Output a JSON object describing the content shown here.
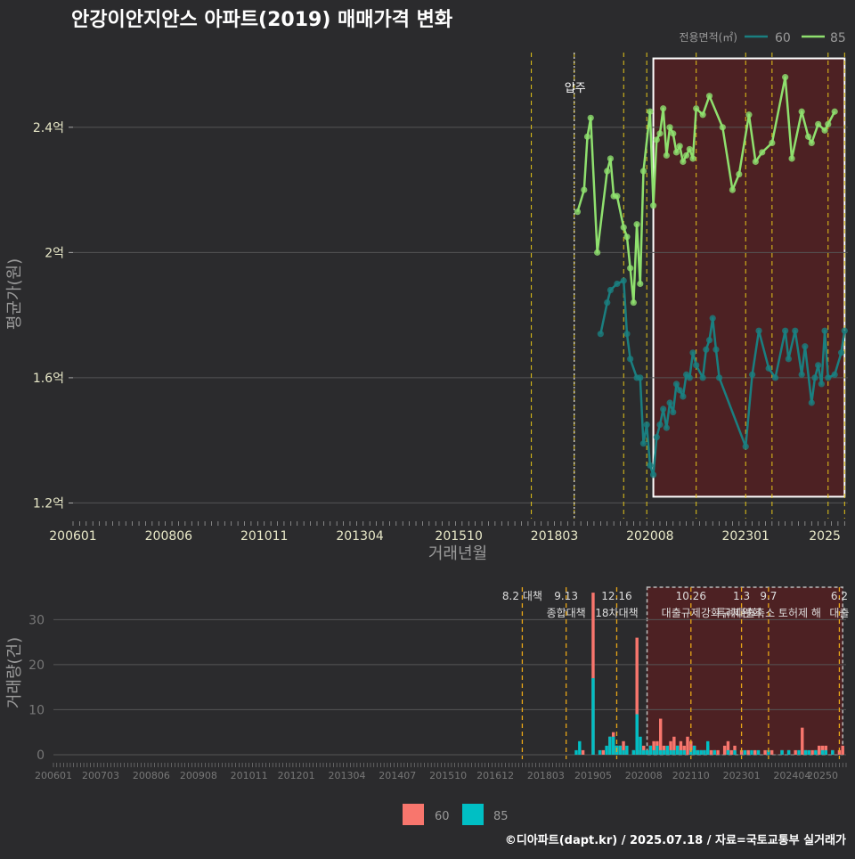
{
  "title": "안강이안지안스 아파트(2019) 매매가격 변화",
  "footer": "©디아파트(dapt.kr) / 2025.07.18 / 자료=국토교통부 실거래가",
  "colors": {
    "background": "#2b2b2d",
    "series_60": "#1a7f80",
    "series_85": "#8fe06e",
    "bar_60": "#f8766d",
    "bar_85": "#00bfc4",
    "policy_line": "#e6c619",
    "highlight_fill": "#5a1f20"
  },
  "chart_data": [
    {
      "type": "line",
      "title": "안강이안지안스 아파트(2019) 매매가격 변화",
      "xlabel": "거래년월",
      "ylabel": "평균가(원)",
      "legend_title": "전용면적(㎡)",
      "legend_placement": "top-right",
      "x_ticks": [
        "200601",
        "200806",
        "201011",
        "201304",
        "201510",
        "201803",
        "202008",
        "202301",
        "2025"
      ],
      "y_ticks": [
        "1.2억",
        "1.6억",
        "2억",
        "2.4억"
      ],
      "y_tick_values": [
        1.2,
        1.6,
        2.0,
        2.4
      ],
      "ylim": [
        1.15,
        2.65
      ],
      "xlim": [
        "2006-01",
        "2025-08"
      ],
      "annotation": "입주",
      "annotation_date": "2018-09",
      "policy_dates": [
        "2017-08",
        "2018-09",
        "2019-12",
        "2020-07",
        "2021-10",
        "2023-01",
        "2023-09",
        "2025-02",
        "2025-07"
      ],
      "highlight_range": [
        "2020-09",
        "2025-07"
      ],
      "highlight_y": [
        1.22,
        2.62
      ],
      "series": [
        {
          "name": "60",
          "points": [
            [
              "2019-05",
              1.74
            ],
            [
              "2019-07",
              1.84
            ],
            [
              "2019-08",
              1.88
            ],
            [
              "2019-10",
              1.9
            ],
            [
              "2019-12",
              1.91
            ],
            [
              "2020-01",
              1.74
            ],
            [
              "2020-02",
              1.66
            ],
            [
              "2020-04",
              1.6
            ],
            [
              "2020-05",
              1.6
            ],
            [
              "2020-06",
              1.39
            ],
            [
              "2020-07",
              1.45
            ],
            [
              "2020-08",
              1.32
            ],
            [
              "2020-09",
              1.29
            ],
            [
              "2020-10",
              1.41
            ],
            [
              "2020-11",
              1.45
            ],
            [
              "2020-12",
              1.5
            ],
            [
              "2021-01",
              1.44
            ],
            [
              "2021-02",
              1.52
            ],
            [
              "2021-03",
              1.49
            ],
            [
              "2021-04",
              1.58
            ],
            [
              "2021-05",
              1.56
            ],
            [
              "2021-06",
              1.54
            ],
            [
              "2021-07",
              1.61
            ],
            [
              "2021-08",
              1.6
            ],
            [
              "2021-09",
              1.68
            ],
            [
              "2021-10",
              1.64
            ],
            [
              "2021-12",
              1.6
            ],
            [
              "2022-01",
              1.69
            ],
            [
              "2022-02",
              1.72
            ],
            [
              "2022-03",
              1.79
            ],
            [
              "2022-04",
              1.69
            ],
            [
              "2022-05",
              1.6
            ],
            [
              "2023-01",
              1.38
            ],
            [
              "2023-03",
              1.61
            ],
            [
              "2023-05",
              1.75
            ],
            [
              "2023-08",
              1.63
            ],
            [
              "2023-10",
              1.6
            ],
            [
              "2024-01",
              1.75
            ],
            [
              "2024-02",
              1.66
            ],
            [
              "2024-04",
              1.75
            ],
            [
              "2024-06",
              1.61
            ],
            [
              "2024-07",
              1.7
            ],
            [
              "2024-09",
              1.52
            ],
            [
              "2024-10",
              1.6
            ],
            [
              "2024-11",
              1.64
            ],
            [
              "2024-12",
              1.58
            ],
            [
              "2025-01",
              1.75
            ],
            [
              "2025-02",
              1.6
            ],
            [
              "2025-04",
              1.61
            ],
            [
              "2025-06",
              1.68
            ],
            [
              "2025-07",
              1.75
            ]
          ]
        },
        {
          "name": "85",
          "points": [
            [
              "2018-10",
              2.13
            ],
            [
              "2018-12",
              2.2
            ],
            [
              "2019-01",
              2.37
            ],
            [
              "2019-02",
              2.43
            ],
            [
              "2019-04",
              2.0
            ],
            [
              "2019-07",
              2.26
            ],
            [
              "2019-08",
              2.3
            ],
            [
              "2019-09",
              2.18
            ],
            [
              "2019-10",
              2.18
            ],
            [
              "2019-12",
              2.08
            ],
            [
              "2020-01",
              2.05
            ],
            [
              "2020-02",
              1.95
            ],
            [
              "2020-03",
              1.84
            ],
            [
              "2020-04",
              2.09
            ],
            [
              "2020-05",
              1.9
            ],
            [
              "2020-06",
              2.26
            ],
            [
              "2020-08",
              2.45
            ],
            [
              "2020-09",
              2.15
            ],
            [
              "2020-10",
              2.36
            ],
            [
              "2020-11",
              2.38
            ],
            [
              "2020-12",
              2.46
            ],
            [
              "2021-01",
              2.31
            ],
            [
              "2021-02",
              2.4
            ],
            [
              "2021-03",
              2.38
            ],
            [
              "2021-04",
              2.32
            ],
            [
              "2021-05",
              2.34
            ],
            [
              "2021-06",
              2.29
            ],
            [
              "2021-07",
              2.31
            ],
            [
              "2021-08",
              2.33
            ],
            [
              "2021-09",
              2.3
            ],
            [
              "2021-10",
              2.46
            ],
            [
              "2021-12",
              2.44
            ],
            [
              "2022-02",
              2.5
            ],
            [
              "2022-06",
              2.4
            ],
            [
              "2022-09",
              2.2
            ],
            [
              "2022-11",
              2.25
            ],
            [
              "2023-02",
              2.44
            ],
            [
              "2023-04",
              2.29
            ],
            [
              "2023-06",
              2.32
            ],
            [
              "2023-09",
              2.35
            ],
            [
              "2024-01",
              2.56
            ],
            [
              "2024-03",
              2.3
            ],
            [
              "2024-06",
              2.45
            ],
            [
              "2024-08",
              2.37
            ],
            [
              "2024-09",
              2.35
            ],
            [
              "2024-11",
              2.41
            ],
            [
              "2025-01",
              2.39
            ],
            [
              "2025-02",
              2.41
            ],
            [
              "2025-04",
              2.45
            ]
          ]
        }
      ]
    },
    {
      "type": "bar",
      "stacked": true,
      "ylabel": "거래량(건)",
      "y_ticks": [
        "0",
        "10",
        "20",
        "30"
      ],
      "y_tick_values": [
        0,
        10,
        20,
        30
      ],
      "ylim": [
        -1,
        38
      ],
      "x_ticks": [
        "200601",
        "200703",
        "200806",
        "200908",
        "201011",
        "201201",
        "201304",
        "201407",
        "201510",
        "201612",
        "201803",
        "201905",
        "202008",
        "202110",
        "202301",
        "202404",
        "20250"
      ],
      "legend_placement": "bottom",
      "highlight_range": [
        "2020-09",
        "2025-07"
      ],
      "policies": [
        {
          "date": "2017-08",
          "line1": "8.2 대책",
          "line2": ""
        },
        {
          "date": "2018-09",
          "line1": "9.13",
          "line2": "종합대책"
        },
        {
          "date": "2019-12",
          "line1": "12.16",
          "line2": "18차대책"
        },
        {
          "date": "2021-10",
          "line1": "10.26",
          "line2": "대출규제강화"
        },
        {
          "date": "2023-01",
          "line1": "1.3",
          "line2": "규제완화"
        },
        {
          "date": "2023-09",
          "line1": "9.7",
          "line2": "특례대출축소 토허제 해"
        },
        {
          "date": "2025-06",
          "line1": "6.2",
          "line2": "대출"
        }
      ],
      "series": [
        {
          "name": "60",
          "points": [
            [
              "2019-02",
              1
            ],
            [
              "2019-05",
              36
            ],
            [
              "2019-08",
              1
            ],
            [
              "2019-10",
              4
            ],
            [
              "2019-11",
              5
            ],
            [
              "2019-12",
              2
            ],
            [
              "2020-01",
              2
            ],
            [
              "2020-02",
              3
            ],
            [
              "2020-03",
              1
            ],
            [
              "2020-05",
              1
            ],
            [
              "2020-06",
              26
            ],
            [
              "2020-07",
              1
            ],
            [
              "2020-08",
              2
            ],
            [
              "2020-09",
              1
            ],
            [
              "2020-10",
              2
            ],
            [
              "2020-11",
              3
            ],
            [
              "2020-12",
              3
            ],
            [
              "2021-01",
              8
            ],
            [
              "2021-02",
              2
            ],
            [
              "2021-03",
              1
            ],
            [
              "2021-04",
              3
            ],
            [
              "2021-05",
              4
            ],
            [
              "2021-06",
              2
            ],
            [
              "2021-07",
              3
            ],
            [
              "2021-08",
              2
            ],
            [
              "2021-09",
              4
            ],
            [
              "2021-10",
              3
            ],
            [
              "2021-11",
              2
            ],
            [
              "2021-12",
              1
            ],
            [
              "2022-01",
              1
            ],
            [
              "2022-02",
              1
            ],
            [
              "2022-03",
              2
            ],
            [
              "2022-04",
              1
            ],
            [
              "2022-05",
              1
            ],
            [
              "2022-06",
              1
            ],
            [
              "2022-08",
              2
            ],
            [
              "2022-09",
              3
            ],
            [
              "2022-10",
              1
            ],
            [
              "2022-11",
              2
            ],
            [
              "2023-01",
              1
            ],
            [
              "2023-03",
              1
            ],
            [
              "2023-05",
              1
            ],
            [
              "2023-08",
              1
            ],
            [
              "2023-10",
              1
            ],
            [
              "2024-01",
              1
            ],
            [
              "2024-03",
              1
            ],
            [
              "2024-05",
              1
            ],
            [
              "2024-07",
              6
            ],
            [
              "2024-08",
              1
            ],
            [
              "2024-10",
              1
            ],
            [
              "2024-11",
              1
            ],
            [
              "2024-12",
              2
            ],
            [
              "2025-01",
              2
            ],
            [
              "2025-02",
              2
            ],
            [
              "2025-04",
              1
            ],
            [
              "2025-06",
              1
            ],
            [
              "2025-07",
              2
            ]
          ]
        },
        {
          "name": "85",
          "points": [
            [
              "2018-12",
              1
            ],
            [
              "2019-01",
              3
            ],
            [
              "2019-05",
              17
            ],
            [
              "2019-07",
              1
            ],
            [
              "2019-09",
              2
            ],
            [
              "2019-10",
              4
            ],
            [
              "2019-11",
              4
            ],
            [
              "2019-12",
              2
            ],
            [
              "2020-01",
              2
            ],
            [
              "2020-02",
              1
            ],
            [
              "2020-03",
              2
            ],
            [
              "2020-05",
              1
            ],
            [
              "2020-06",
              9
            ],
            [
              "2020-07",
              4
            ],
            [
              "2020-08",
              1
            ],
            [
              "2020-09",
              1
            ],
            [
              "2020-10",
              2
            ],
            [
              "2020-11",
              1
            ],
            [
              "2020-12",
              2
            ],
            [
              "2021-01",
              1
            ],
            [
              "2021-02",
              1
            ],
            [
              "2021-03",
              2
            ],
            [
              "2021-04",
              1
            ],
            [
              "2021-05",
              1
            ],
            [
              "2021-06",
              2
            ],
            [
              "2021-07",
              1
            ],
            [
              "2021-08",
              1
            ],
            [
              "2021-10",
              1
            ],
            [
              "2021-11",
              2
            ],
            [
              "2021-12",
              1
            ],
            [
              "2022-01",
              1
            ],
            [
              "2022-02",
              1
            ],
            [
              "2022-03",
              3
            ],
            [
              "2022-05",
              1
            ],
            [
              "2022-09",
              1
            ],
            [
              "2022-11",
              1
            ],
            [
              "2023-02",
              1
            ],
            [
              "2023-04",
              1
            ],
            [
              "2023-06",
              1
            ],
            [
              "2023-09",
              1
            ],
            [
              "2024-01",
              1
            ],
            [
              "2024-03",
              1
            ],
            [
              "2024-06",
              1
            ],
            [
              "2024-08",
              1
            ],
            [
              "2024-09",
              1
            ],
            [
              "2024-11",
              1
            ],
            [
              "2025-01",
              1
            ],
            [
              "2025-02",
              1
            ],
            [
              "2025-04",
              1
            ]
          ]
        }
      ]
    }
  ]
}
